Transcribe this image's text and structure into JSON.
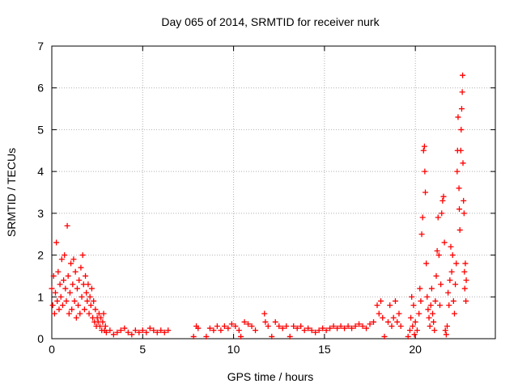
{
  "chart_data": {
    "type": "scatter",
    "title": "Day 065 of 2014, SRMTID for receiver nurk",
    "xlabel": "GPS time / hours",
    "ylabel": "SRMTID / TECUs",
    "xlim": [
      0,
      24.4
    ],
    "ylim": [
      0,
      7
    ],
    "xticks": [
      "0",
      "5",
      "10",
      "15",
      "20"
    ],
    "yticks": [
      "0",
      "1",
      "2",
      "3",
      "4",
      "5",
      "6",
      "7"
    ],
    "grid": true,
    "marker": "+",
    "series": [
      {
        "name": "SRMTID",
        "color": "#ff0000",
        "points": [
          [
            0.0,
            1.2
          ],
          [
            0.05,
            0.8
          ],
          [
            0.1,
            1.5
          ],
          [
            0.15,
            0.6
          ],
          [
            0.2,
            1.1
          ],
          [
            0.25,
            2.3
          ],
          [
            0.3,
            0.9
          ],
          [
            0.35,
            1.6
          ],
          [
            0.4,
            0.7
          ],
          [
            0.45,
            1.3
          ],
          [
            0.5,
            1.0
          ],
          [
            0.55,
            1.9
          ],
          [
            0.6,
            0.8
          ],
          [
            0.65,
            1.4
          ],
          [
            0.7,
            2.0
          ],
          [
            0.75,
            1.2
          ],
          [
            0.8,
            0.9
          ],
          [
            0.85,
            2.7
          ],
          [
            0.9,
            1.5
          ],
          [
            0.95,
            0.6
          ],
          [
            1.0,
            1.1
          ],
          [
            1.05,
            1.8
          ],
          [
            1.1,
            0.7
          ],
          [
            1.15,
            1.3
          ],
          [
            1.2,
            1.9
          ],
          [
            1.25,
            0.9
          ],
          [
            1.3,
            1.6
          ],
          [
            1.35,
            0.5
          ],
          [
            1.4,
            1.2
          ],
          [
            1.45,
            0.8
          ],
          [
            1.5,
            1.4
          ],
          [
            1.55,
            0.6
          ],
          [
            1.6,
            1.7
          ],
          [
            1.65,
            1.0
          ],
          [
            1.7,
            2.0
          ],
          [
            1.75,
            1.3
          ],
          [
            1.8,
            0.7
          ],
          [
            1.85,
            1.5
          ],
          [
            1.9,
            1.1
          ],
          [
            1.95,
            0.9
          ],
          [
            2.0,
            1.3
          ],
          [
            2.05,
            0.6
          ],
          [
            2.1,
            1.0
          ],
          [
            2.15,
            0.8
          ],
          [
            2.2,
            1.2
          ],
          [
            2.25,
            0.5
          ],
          [
            2.3,
            0.9
          ],
          [
            2.35,
            0.4
          ],
          [
            2.4,
            0.7
          ],
          [
            2.45,
            0.3
          ],
          [
            2.5,
            0.5
          ],
          [
            2.55,
            0.4
          ],
          [
            2.6,
            0.6
          ],
          [
            2.65,
            0.3
          ],
          [
            2.7,
            0.5
          ],
          [
            2.75,
            0.2
          ],
          [
            2.8,
            0.4
          ],
          [
            2.85,
            0.6
          ],
          [
            2.9,
            0.2
          ],
          [
            2.95,
            0.3
          ],
          [
            3.0,
            0.15
          ],
          [
            3.2,
            0.2
          ],
          [
            3.4,
            0.1
          ],
          [
            3.6,
            0.15
          ],
          [
            3.8,
            0.2
          ],
          [
            4.0,
            0.25
          ],
          [
            4.2,
            0.15
          ],
          [
            4.4,
            0.1
          ],
          [
            4.6,
            0.2
          ],
          [
            4.8,
            0.15
          ],
          [
            5.0,
            0.2
          ],
          [
            5.2,
            0.15
          ],
          [
            5.4,
            0.25
          ],
          [
            5.6,
            0.2
          ],
          [
            5.8,
            0.15
          ],
          [
            6.0,
            0.2
          ],
          [
            6.2,
            0.15
          ],
          [
            6.4,
            0.2
          ],
          [
            7.8,
            0.05
          ],
          [
            7.95,
            0.3
          ],
          [
            8.05,
            0.25
          ],
          [
            8.5,
            0.05
          ],
          [
            8.7,
            0.25
          ],
          [
            8.9,
            0.2
          ],
          [
            9.1,
            0.3
          ],
          [
            9.3,
            0.2
          ],
          [
            9.5,
            0.3
          ],
          [
            9.7,
            0.25
          ],
          [
            9.9,
            0.35
          ],
          [
            10.1,
            0.3
          ],
          [
            10.3,
            0.2
          ],
          [
            10.4,
            0.05
          ],
          [
            10.6,
            0.4
          ],
          [
            10.8,
            0.35
          ],
          [
            11.0,
            0.3
          ],
          [
            11.2,
            0.2
          ],
          [
            11.7,
            0.6
          ],
          [
            11.75,
            0.4
          ],
          [
            11.9,
            0.3
          ],
          [
            12.1,
            0.05
          ],
          [
            12.3,
            0.4
          ],
          [
            12.5,
            0.3
          ],
          [
            12.7,
            0.25
          ],
          [
            12.9,
            0.3
          ],
          [
            13.1,
            0.05
          ],
          [
            13.3,
            0.3
          ],
          [
            13.5,
            0.25
          ],
          [
            13.7,
            0.3
          ],
          [
            13.9,
            0.2
          ],
          [
            14.1,
            0.25
          ],
          [
            14.3,
            0.2
          ],
          [
            14.5,
            0.15
          ],
          [
            14.7,
            0.2
          ],
          [
            14.9,
            0.25
          ],
          [
            15.1,
            0.2
          ],
          [
            15.3,
            0.25
          ],
          [
            15.5,
            0.3
          ],
          [
            15.7,
            0.25
          ],
          [
            15.9,
            0.3
          ],
          [
            16.1,
            0.25
          ],
          [
            16.3,
            0.3
          ],
          [
            16.5,
            0.25
          ],
          [
            16.7,
            0.3
          ],
          [
            16.9,
            0.35
          ],
          [
            17.1,
            0.3
          ],
          [
            17.3,
            0.25
          ],
          [
            17.5,
            0.35
          ],
          [
            17.7,
            0.4
          ],
          [
            17.9,
            0.8
          ],
          [
            18.0,
            0.6
          ],
          [
            18.1,
            0.9
          ],
          [
            18.2,
            0.5
          ],
          [
            18.3,
            0.05
          ],
          [
            18.5,
            0.4
          ],
          [
            18.6,
            0.8
          ],
          [
            18.7,
            0.3
          ],
          [
            18.8,
            0.5
          ],
          [
            18.9,
            0.9
          ],
          [
            19.0,
            0.4
          ],
          [
            19.1,
            0.6
          ],
          [
            19.2,
            0.3
          ],
          [
            19.6,
            0.05
          ],
          [
            19.7,
            0.2
          ],
          [
            19.75,
            0.5
          ],
          [
            19.8,
            1.0
          ],
          [
            19.85,
            0.3
          ],
          [
            19.9,
            0.8
          ],
          [
            19.95,
            0.1
          ],
          [
            20.0,
            0.4
          ],
          [
            20.1,
            0.2
          ],
          [
            20.2,
            0.6
          ],
          [
            20.25,
            1.2
          ],
          [
            20.3,
            0.9
          ],
          [
            20.35,
            2.5
          ],
          [
            20.4,
            2.9
          ],
          [
            20.45,
            4.5
          ],
          [
            20.5,
            4.6
          ],
          [
            20.52,
            4.0
          ],
          [
            20.55,
            3.5
          ],
          [
            20.6,
            1.8
          ],
          [
            20.65,
            1.0
          ],
          [
            20.7,
            0.7
          ],
          [
            20.75,
            0.5
          ],
          [
            20.8,
            0.3
          ],
          [
            20.85,
            0.8
          ],
          [
            20.9,
            1.2
          ],
          [
            20.95,
            0.6
          ],
          [
            21.0,
            0.4
          ],
          [
            21.05,
            0.2
          ],
          [
            21.1,
            0.9
          ],
          [
            21.15,
            1.5
          ],
          [
            21.2,
            2.1
          ],
          [
            21.25,
            2.9
          ],
          [
            21.3,
            2.0
          ],
          [
            21.35,
            0.8
          ],
          [
            21.4,
            1.3
          ],
          [
            21.45,
            3.0
          ],
          [
            21.5,
            3.3
          ],
          [
            21.55,
            3.4
          ],
          [
            21.6,
            2.3
          ],
          [
            21.65,
            0.2
          ],
          [
            21.7,
            0.1
          ],
          [
            21.75,
            0.3
          ],
          [
            21.8,
            1.1
          ],
          [
            21.85,
            0.8
          ],
          [
            21.9,
            1.4
          ],
          [
            21.95,
            2.2
          ],
          [
            22.0,
            1.6
          ],
          [
            22.05,
            2.0
          ],
          [
            22.1,
            0.9
          ],
          [
            22.15,
            0.6
          ],
          [
            22.2,
            1.3
          ],
          [
            22.25,
            1.8
          ],
          [
            22.3,
            4.0
          ],
          [
            22.32,
            4.5
          ],
          [
            22.35,
            5.3
          ],
          [
            22.4,
            3.6
          ],
          [
            22.42,
            3.1
          ],
          [
            22.45,
            2.6
          ],
          [
            22.5,
            4.5
          ],
          [
            22.52,
            5.0
          ],
          [
            22.55,
            5.5
          ],
          [
            22.58,
            5.9
          ],
          [
            22.6,
            6.3
          ],
          [
            22.62,
            4.2
          ],
          [
            22.65,
            3.3
          ],
          [
            22.68,
            3.0
          ],
          [
            22.7,
            1.6
          ],
          [
            22.72,
            1.2
          ],
          [
            22.75,
            1.8
          ],
          [
            22.78,
            0.9
          ],
          [
            22.8,
            1.4
          ]
        ]
      }
    ]
  }
}
